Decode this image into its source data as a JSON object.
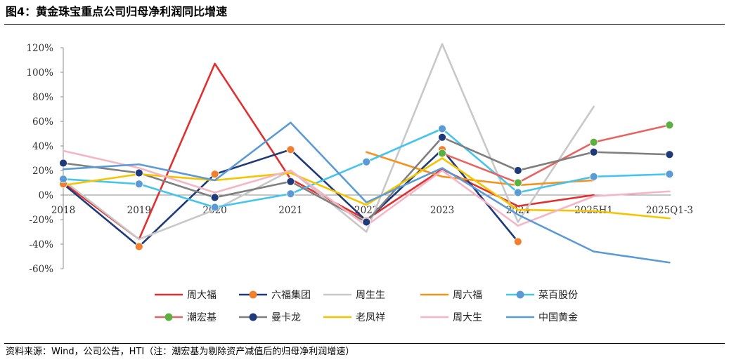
{
  "figure": {
    "title": "图4：黄金珠宝重点公司归母净利润同比增速",
    "source": "资料来源：Wind，公司公告，HTI（注：潮宏基为剔除资产减值后的归母净利润增速）"
  },
  "chart_data": {
    "type": "line",
    "title": "",
    "xlabel": "",
    "ylabel": "",
    "x": [
      "2018",
      "2019",
      "2020",
      "2021",
      "2022",
      "2023",
      "2024",
      "2025H1",
      "2025Q1-3"
    ],
    "y_ticks": [
      "120%",
      "100%",
      "80%",
      "60%",
      "40%",
      "20%",
      "0%",
      "-20%",
      "-40%",
      "-60%"
    ],
    "ylim": [
      -60,
      120
    ],
    "y_unit": "%",
    "grid": false,
    "legend_position": "bottom",
    "series": [
      {
        "name": "周大福",
        "color": "#e03030",
        "marker": false,
        "values": [
          10,
          -36,
          107,
          13,
          -20,
          21,
          -9,
          0,
          null
        ]
      },
      {
        "name": "六福集团",
        "color": "#1f3a7a",
        "marker": true,
        "marker_color": "#f07f2e",
        "values": [
          9,
          -42,
          17,
          37,
          -21,
          37,
          -38,
          null,
          null
        ]
      },
      {
        "name": "周生生",
        "color": "#c8c8c8",
        "marker": false,
        "values": [
          12,
          -36,
          -12,
          20,
          -30,
          123,
          -22,
          72,
          null
        ]
      },
      {
        "name": "周六福",
        "color": "#f5921e",
        "marker": false,
        "values": [
          null,
          null,
          null,
          null,
          35,
          15,
          8,
          12,
          null
        ]
      },
      {
        "name": "菜百股份",
        "color": "#45c4ee",
        "marker": true,
        "marker_color": "#5b9bd5",
        "values": [
          13,
          9,
          -10,
          1,
          27,
          54,
          2,
          15,
          17
        ]
      },
      {
        "name": "潮宏基",
        "color": "#e86460",
        "marker": true,
        "marker_color": "#5cb040",
        "values": [
          null,
          null,
          null,
          null,
          null,
          34,
          10,
          43,
          57
        ]
      },
      {
        "name": "曼卡龙",
        "color": "#7f7f7f",
        "marker": true,
        "marker_color": "#1f3a7a",
        "values": [
          26,
          18,
          -2,
          11,
          -22,
          47,
          20,
          35,
          33
        ]
      },
      {
        "name": "老凤祥",
        "color": "#f5c400",
        "marker": false,
        "values": [
          8,
          17,
          12,
          18,
          -8,
          30,
          -12,
          -13,
          -19
        ]
      },
      {
        "name": "周大生",
        "color": "#f5b5c5",
        "marker": false,
        "values": [
          36,
          22,
          2,
          20,
          -25,
          20,
          -25,
          -1,
          3
        ]
      },
      {
        "name": "中国黄金",
        "color": "#5b9bd5",
        "marker": false,
        "values": [
          21,
          25,
          12,
          59,
          -6,
          22,
          -16,
          -46,
          -55
        ]
      }
    ]
  }
}
